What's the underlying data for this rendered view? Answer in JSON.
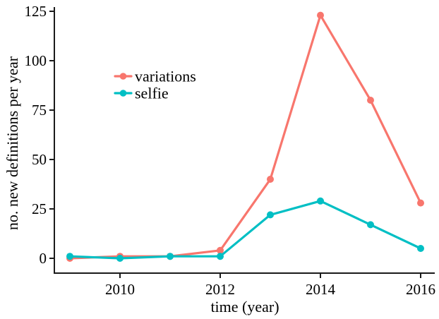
{
  "chart_data": {
    "type": "line",
    "title": "",
    "xlabel": "time (year)",
    "ylabel": "no. new definitions per year",
    "x": [
      2009,
      2010,
      2011,
      2012,
      2013,
      2014,
      2015,
      2016
    ],
    "series": [
      {
        "name": "variations",
        "color": "#F8766D",
        "values": [
          0,
          1,
          1,
          4,
          40,
          123,
          80,
          28
        ]
      },
      {
        "name": "selfie",
        "color": "#00BFC4",
        "values": [
          1,
          0,
          1,
          1,
          22,
          29,
          17,
          5
        ]
      }
    ],
    "xtick_labels": [
      "2010",
      "2012",
      "2014",
      "2016"
    ],
    "xtick_years": [
      2010,
      2012,
      2014,
      2016
    ],
    "ytick_labels": [
      "0",
      "25",
      "50",
      "75",
      "100",
      "125"
    ],
    "ytick_values": [
      0,
      25,
      50,
      75,
      100,
      125
    ],
    "xlim": [
      2008.7,
      2016.3
    ],
    "ylim": [
      0,
      125
    ],
    "grid": false,
    "legend_position": "inside-upper-left"
  },
  "colors": {
    "axis": "#1a1a1a",
    "text": "#000000",
    "background": "#ffffff"
  }
}
